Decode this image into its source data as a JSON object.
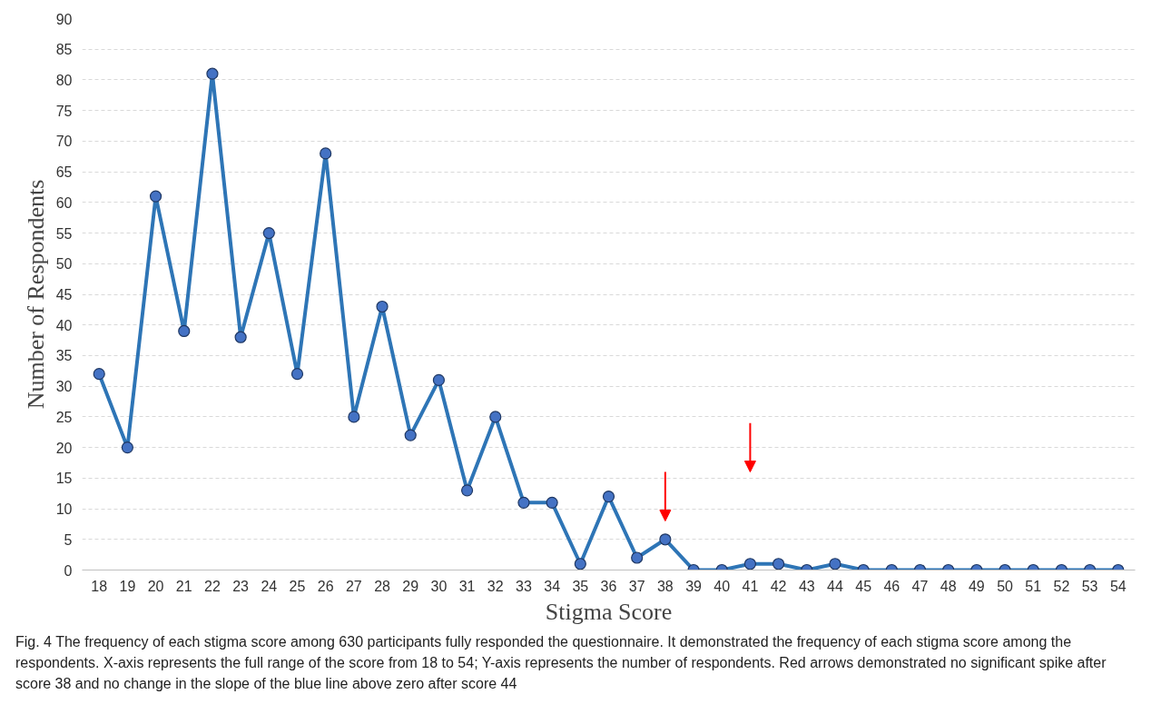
{
  "chart_data": {
    "type": "line",
    "xlabel": "Stigma Score",
    "ylabel": "Number of Respondents",
    "categories": [
      "18",
      "19",
      "20",
      "21",
      "22",
      "23",
      "24",
      "25",
      "26",
      "27",
      "28",
      "29",
      "30",
      "31",
      "32",
      "33",
      "34",
      "35",
      "36",
      "37",
      "38",
      "39",
      "40",
      "41",
      "42",
      "43",
      "44",
      "45",
      "46",
      "47",
      "48",
      "49",
      "50",
      "51",
      "52",
      "53",
      "54"
    ],
    "series": [
      {
        "color": "#2e75b6",
        "values": [
          32,
          20,
          61,
          39,
          81,
          38,
          55,
          32,
          68,
          25,
          43,
          22,
          31,
          13,
          25,
          11,
          11,
          1,
          12,
          2,
          5,
          0,
          0,
          1,
          1,
          0,
          1,
          0,
          0,
          0,
          0,
          0,
          0,
          0,
          0,
          0,
          0
        ]
      }
    ],
    "ylim": [
      0,
      90
    ],
    "yticks": [
      0,
      5,
      10,
      15,
      20,
      25,
      30,
      35,
      40,
      45,
      50,
      55,
      60,
      65,
      70,
      75,
      80,
      85,
      90
    ],
    "grid": "y",
    "marker": "circle",
    "line_style": "solid",
    "annotations": [
      "Fig. 4  The frequency of each stigma score among 630 participants fully responded the questionnaire. It demonstrated the frequency of each stigma score among the respondents. X-axis represents the full range of the score from 18 to 54; Y-axis represents the number of respondents. Red arrows demonstrated no significant spike after score 38 and no change in the slope of the blue line above zero after score 44"
    ]
  }
}
